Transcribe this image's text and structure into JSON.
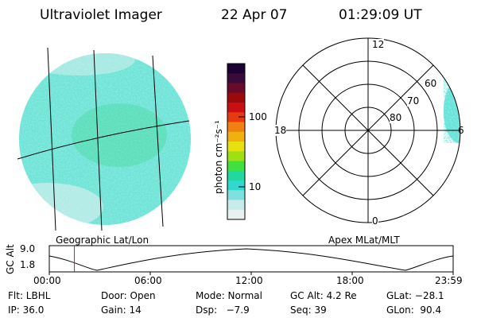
{
  "header": {
    "title": "Ultraviolet Imager",
    "date": "22 Apr 07",
    "time": "01:29:09 UT"
  },
  "left_panel": {
    "caption": "Geographic Lat/Lon"
  },
  "right_panel": {
    "caption": "Apex MLat/MLT",
    "mlt_labels": {
      "top": "12",
      "left": "18",
      "right": "6",
      "bottom": "0"
    },
    "mlat_labels": [
      "60",
      "70",
      "80"
    ]
  },
  "colorbar": {
    "unit_label": "photon cm⁻²s⁻¹",
    "ticks": [
      "100",
      "10"
    ],
    "scale": "log",
    "colors": [
      "#1a0033",
      "#3a0a3a",
      "#6a0a2a",
      "#9a0a0a",
      "#c81010",
      "#e83a10",
      "#f08010",
      "#f0b010",
      "#e8e010",
      "#a0e010",
      "#40e040",
      "#20d8a0",
      "#30d8d0",
      "#80e0e0",
      "#c8ecec",
      "#e8f0f0"
    ]
  },
  "altitude_plot": {
    "ylabel": "GC Alt",
    "yticks": [
      "9.0",
      "1.8"
    ],
    "xticks": [
      "00:00",
      "06:00",
      "12:00",
      "18:00",
      "23:59"
    ],
    "marker_time_hours": 1.49,
    "marker_color": "#d02020"
  },
  "info": {
    "flt": "Flt: LBHL",
    "door": "Door: Open",
    "mode": "Mode: Normal",
    "gc_alt": "GC Alt: 4.2 Re",
    "glat": "GLat: −28.1",
    "ip": "IP: 36.0",
    "gain": "Gain: 14",
    "dsp": "Dsp:   −7.9",
    "seq": "Seq: 39",
    "glon": "GLon:  90.4"
  }
}
